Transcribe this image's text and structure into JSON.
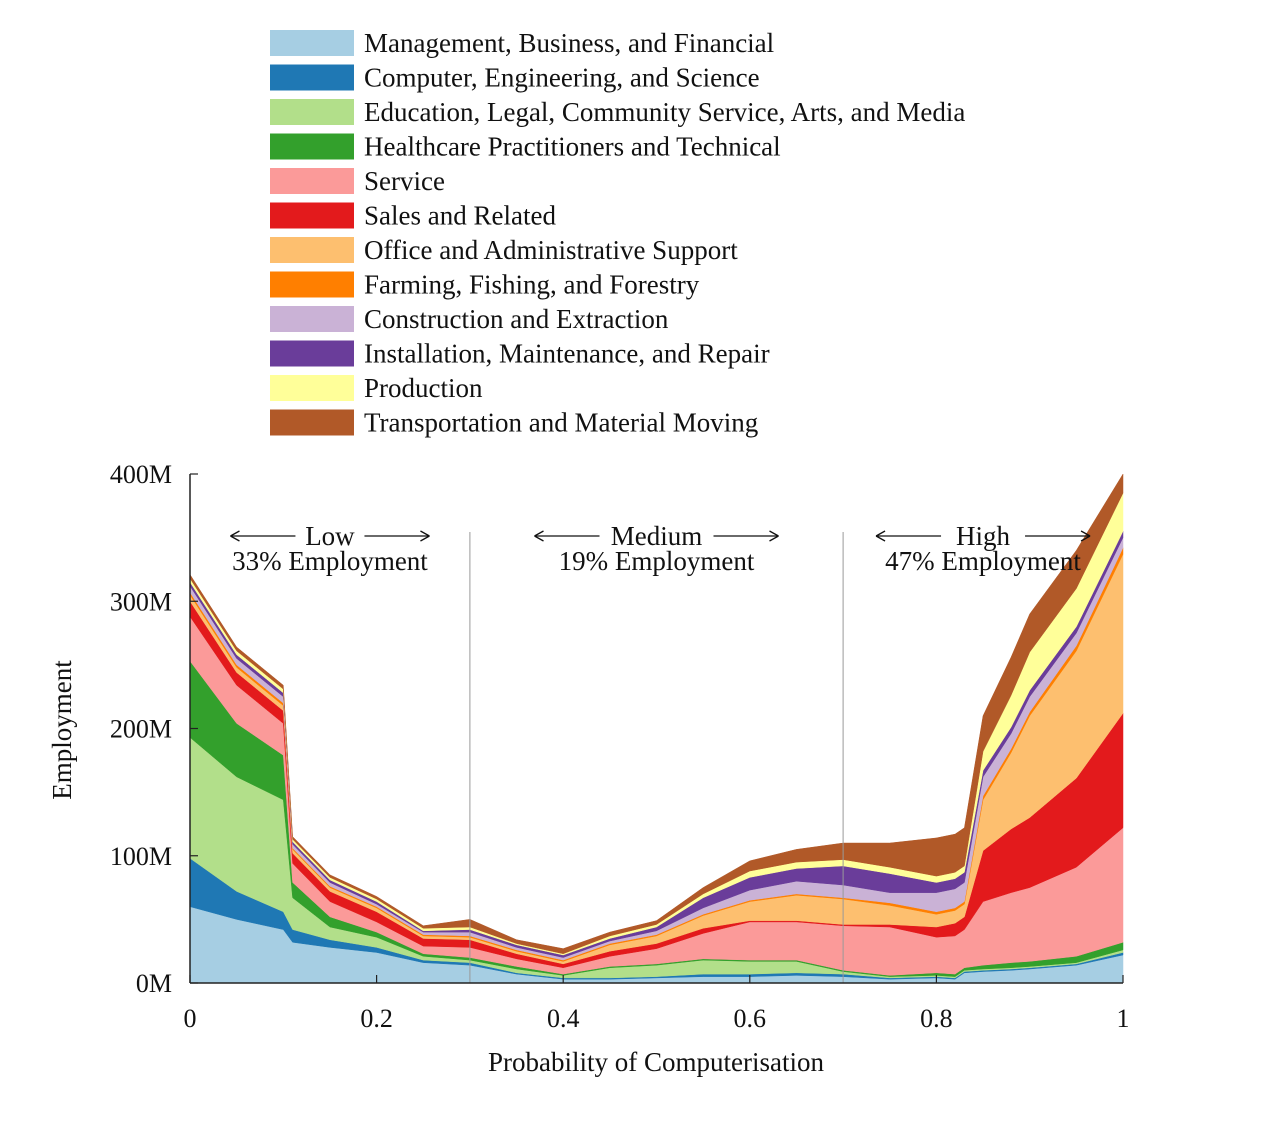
{
  "chart_data": {
    "type": "area",
    "stacked": true,
    "xlabel": "Probability of Computerisation",
    "ylabel": "Employment",
    "xlim": [
      0,
      1
    ],
    "ylim": [
      0,
      400
    ],
    "x_ticks": [
      {
        "value": 0,
        "label": "0"
      },
      {
        "value": 0.2,
        "label": "0.2"
      },
      {
        "value": 0.4,
        "label": "0.4"
      },
      {
        "value": 0.6,
        "label": "0.6"
      },
      {
        "value": 0.8,
        "label": "0.8"
      },
      {
        "value": 1,
        "label": "1"
      }
    ],
    "y_ticks": [
      {
        "value": 0,
        "label": "0M"
      },
      {
        "value": 100,
        "label": "100M"
      },
      {
        "value": 200,
        "label": "200M"
      },
      {
        "value": 300,
        "label": "300M"
      },
      {
        "value": 400,
        "label": "400M"
      }
    ],
    "grid": false,
    "legend_position": "top",
    "x": [
      0,
      0.05,
      0.1,
      0.11,
      0.15,
      0.2,
      0.25,
      0.3,
      0.35,
      0.4,
      0.45,
      0.5,
      0.55,
      0.6,
      0.65,
      0.7,
      0.75,
      0.8,
      0.82,
      0.83,
      0.85,
      0.88,
      0.9,
      0.95,
      1
    ],
    "series": [
      {
        "name": "Management, Business, and Financial",
        "color": "#a6cee3",
        "values": [
          60,
          50,
          42,
          32,
          28,
          24,
          16,
          14,
          7,
          3,
          3,
          4,
          5,
          5,
          6,
          5,
          3,
          4,
          3,
          8,
          9,
          10,
          11,
          14,
          22
        ]
      },
      {
        "name": "Computer, Engineering, and Science",
        "color": "#1f78b4",
        "values": [
          38,
          22,
          14,
          10,
          6,
          4,
          2,
          2,
          1,
          1,
          1,
          1,
          2,
          2,
          2,
          2,
          1,
          1,
          1,
          1,
          1,
          1,
          1,
          1,
          2
        ]
      },
      {
        "name": "Education, Legal, Community Service, Arts, and Media",
        "color": "#b2df8a",
        "values": [
          95,
          90,
          88,
          25,
          10,
          8,
          3,
          2,
          3,
          2,
          8,
          9,
          11,
          10,
          9,
          2,
          1,
          1,
          1,
          1,
          1,
          1,
          1,
          1,
          2
        ]
      },
      {
        "name": "Healthcare Practitioners and Technical",
        "color": "#33a02c",
        "values": [
          60,
          42,
          35,
          12,
          8,
          4,
          2,
          2,
          2,
          1,
          1,
          1,
          1,
          1,
          1,
          1,
          1,
          2,
          2,
          2,
          3,
          4,
          4,
          5,
          6
        ]
      },
      {
        "name": "Service",
        "color": "#fb9a99",
        "values": [
          35,
          30,
          25,
          15,
          12,
          8,
          6,
          8,
          6,
          5,
          8,
          12,
          20,
          30,
          30,
          35,
          38,
          28,
          30,
          30,
          50,
          55,
          58,
          70,
          90
        ]
      },
      {
        "name": "Sales and Related",
        "color": "#e31a1c",
        "values": [
          12,
          10,
          10,
          8,
          8,
          8,
          6,
          6,
          4,
          3,
          4,
          4,
          4,
          1,
          1,
          1,
          2,
          8,
          10,
          10,
          40,
          50,
          55,
          70,
          90
        ]
      },
      {
        "name": "Office and Administrative Support",
        "color": "#fdbf6f",
        "values": [
          5,
          4,
          4,
          3,
          3,
          3,
          2,
          2,
          2,
          2,
          5,
          6,
          10,
          15,
          20,
          20,
          15,
          10,
          10,
          10,
          40,
          60,
          80,
          100,
          125
        ]
      },
      {
        "name": "Farming, Fishing, and Forestry",
        "color": "#ff7f00",
        "values": [
          2,
          2,
          2,
          1,
          1,
          1,
          1,
          1,
          1,
          1,
          1,
          1,
          1,
          1,
          1,
          1,
          2,
          2,
          2,
          2,
          3,
          3,
          3,
          4,
          5
        ]
      },
      {
        "name": "Construction and Extraction",
        "color": "#cab2d6",
        "values": [
          5,
          5,
          5,
          3,
          3,
          2,
          2,
          3,
          2,
          2,
          2,
          3,
          5,
          8,
          10,
          10,
          8,
          15,
          15,
          15,
          15,
          12,
          12,
          10,
          8
        ]
      },
      {
        "name": "Installation, Maintenance, and Repair",
        "color": "#6a3d9a",
        "values": [
          3,
          3,
          3,
          2,
          2,
          2,
          1,
          2,
          2,
          2,
          2,
          3,
          8,
          10,
          10,
          15,
          15,
          8,
          8,
          8,
          5,
          5,
          5,
          5,
          5
        ]
      },
      {
        "name": "Production",
        "color": "#ffff99",
        "values": [
          3,
          3,
          3,
          2,
          2,
          2,
          2,
          2,
          1,
          1,
          2,
          2,
          3,
          5,
          5,
          5,
          5,
          5,
          5,
          5,
          15,
          25,
          30,
          30,
          30
        ]
      },
      {
        "name": "Transportation and Material Moving",
        "color": "#b15928",
        "values": [
          3,
          3,
          3,
          2,
          2,
          2,
          2,
          6,
          3,
          4,
          3,
          3,
          5,
          8,
          10,
          13,
          19,
          30,
          30,
          30,
          28,
          30,
          30,
          30,
          15
        ]
      }
    ],
    "regions": [
      {
        "label": "Low",
        "share": "33% Employment",
        "from": 0,
        "to": 0.3
      },
      {
        "label": "Medium",
        "share": "19% Employment",
        "from": 0.3,
        "to": 0.7
      },
      {
        "label": "High",
        "share": "47% Employment",
        "from": 0.7,
        "to": 1
      }
    ],
    "dividers": [
      0.3,
      0.7
    ]
  }
}
